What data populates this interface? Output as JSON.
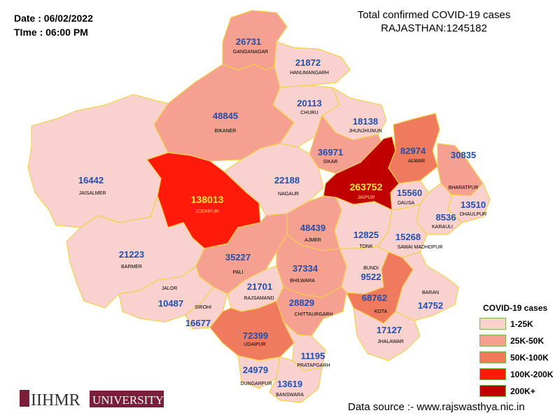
{
  "date_label": "Date : 06/02/2022",
  "time_label": "TIme : 06:00 PM",
  "title_line1": "Total confirmed COVID-19 cases",
  "title_line2": "RAJASTHAN:1245182",
  "legend": {
    "title": "COVID-19 cases",
    "items": [
      {
        "label": "1-25K",
        "color": "#f9d2d0"
      },
      {
        "label": "25K-50K",
        "color": "#f5a090"
      },
      {
        "label": "50K-100K",
        "color": "#ef7a5e"
      },
      {
        "label": "100K-200K",
        "color": "#ff1a0a"
      },
      {
        "label": "200K+",
        "color": "#c00000"
      }
    ]
  },
  "source": "Data source :- www.rajswasthya.nic.in",
  "logo_text": "IIHMR",
  "logo_text2": "UNIVERSITY",
  "districts": [
    {
      "name": "GANGANAGAR",
      "cases": "26731"
    },
    {
      "name": "HANUMANGARH",
      "cases": "21872"
    },
    {
      "name": "CHURU",
      "cases": "20113"
    },
    {
      "name": "BIKANER",
      "cases": "48845"
    },
    {
      "name": "JHUNJHUNUN",
      "cases": "18138"
    },
    {
      "name": "SIKAR",
      "cases": "36971"
    },
    {
      "name": "ALWAR",
      "cases": "82974"
    },
    {
      "name": "BHARATPUR",
      "cases": "30835"
    },
    {
      "name": "JAISALMER",
      "cases": "16442"
    },
    {
      "name": "NAGAUR",
      "cases": "22188"
    },
    {
      "name": "JAIPUR",
      "cases": "263752"
    },
    {
      "name": "DAUSA",
      "cases": "15560"
    },
    {
      "name": "DHAULPUR",
      "cases": "13510"
    },
    {
      "name": "JODHPUR",
      "cases": "138013"
    },
    {
      "name": "AJMER",
      "cases": "48439"
    },
    {
      "name": "KARAULI",
      "cases": "8536"
    },
    {
      "name": "TONK",
      "cases": "12825"
    },
    {
      "name": "SAWAI MADHOPUR",
      "cases": "15268"
    },
    {
      "name": "BARMER",
      "cases": "21223"
    },
    {
      "name": "PALI",
      "cases": "35227"
    },
    {
      "name": "BHILWARA",
      "cases": "37334"
    },
    {
      "name": "BUNDI",
      "cases": "9522"
    },
    {
      "name": "JALOR",
      "cases": "10487"
    },
    {
      "name": "SIROHI",
      "cases": "16677"
    },
    {
      "name": "RAJSAMAND",
      "cases": "21701"
    },
    {
      "name": "CHITTAURGARH",
      "cases": "28829"
    },
    {
      "name": "KOTA",
      "cases": "68762"
    },
    {
      "name": "BARAN",
      "cases": "14752"
    },
    {
      "name": "UDAIPUR",
      "cases": "72399"
    },
    {
      "name": "JHALAWAR",
      "cases": "17127"
    },
    {
      "name": "PRATAPGARH",
      "cases": "11195"
    },
    {
      "name": "DUNGARPUR",
      "cases": "24979"
    },
    {
      "name": "BANSWARA",
      "cases": "13619"
    }
  ]
}
